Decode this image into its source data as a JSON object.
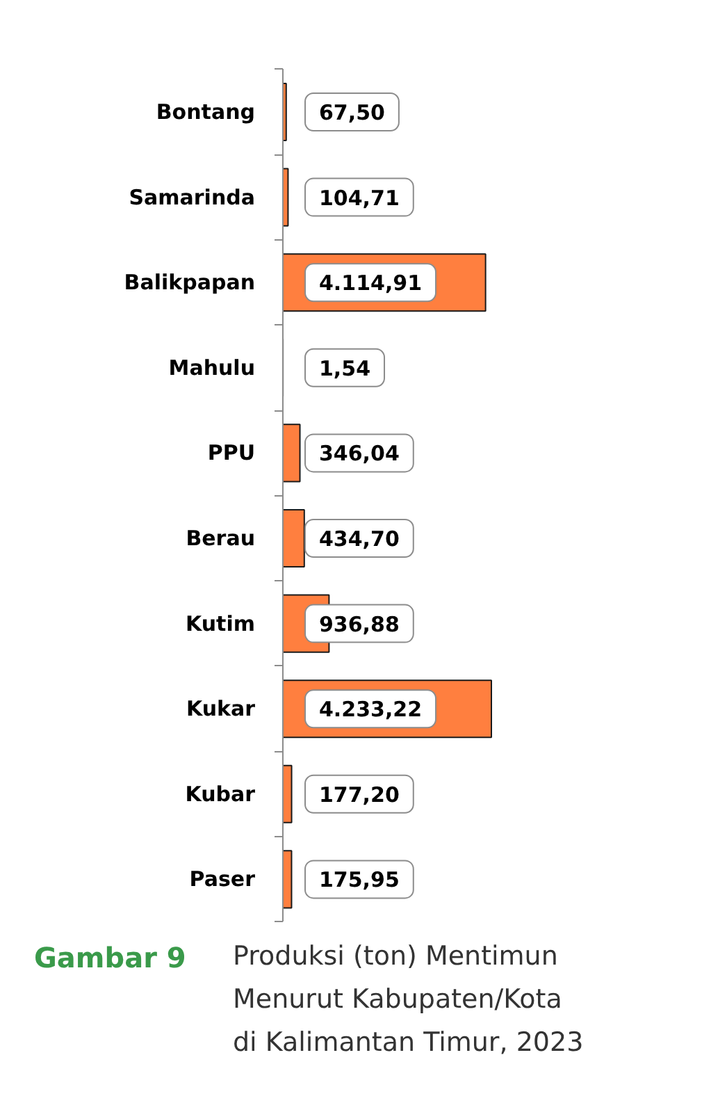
{
  "chart_data": {
    "type": "bar",
    "orientation": "horizontal",
    "title": "Produksi (ton) Mentimun Menurut Kabupaten/Kota di Kalimantan Timur, 2023",
    "annotations": [
      "Gambar 9"
    ],
    "categories": [
      "Bontang",
      "Samarinda",
      "Balikpapan",
      "Mahulu",
      "PPU",
      "Berau",
      "Kutim",
      "Kukar",
      "Kubar",
      "Paser"
    ],
    "values": [
      67.5,
      104.71,
      4114.91,
      1.54,
      346.04,
      434.7,
      936.88,
      4233.22,
      177.2,
      175.95
    ],
    "value_labels": [
      "67,50",
      "104,71",
      "4.114,91",
      "1,54",
      "346,04",
      "434,70",
      "936,88",
      "4.233,22",
      "177,20",
      "175,95"
    ],
    "color": "#ff7f3f"
  }
}
